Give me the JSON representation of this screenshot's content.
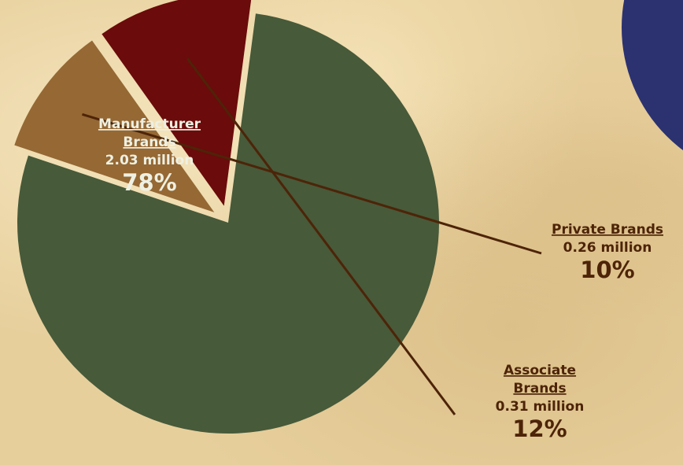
{
  "chart_data": {
    "type": "pie",
    "title": "",
    "slices": [
      {
        "label_lines": [
          "Manufacturer",
          "Brands"
        ],
        "value": 2.03,
        "value_label": "2.03 million",
        "percent": 78,
        "percent_label": "78%",
        "color": "#475a3a",
        "text_color": "#eef0e2",
        "exploded": false
      },
      {
        "label_lines": [
          "Private Brands"
        ],
        "value": 0.26,
        "value_label": "0.26 million",
        "percent": 10,
        "percent_label": "10%",
        "color": "#956834",
        "text_color": "#4d2408",
        "exploded": true
      },
      {
        "label_lines": [
          "Associate",
          "Brands"
        ],
        "value": 0.31,
        "value_label": "0.31 million",
        "percent": 12,
        "percent_label": "12%",
        "color": "#6b0b0b",
        "text_color": "#4d2408",
        "exploded": true
      }
    ],
    "legend": "none"
  },
  "decor": {
    "corner_circle_color": "#2c3270",
    "leader_line_color": "#4d2408"
  }
}
